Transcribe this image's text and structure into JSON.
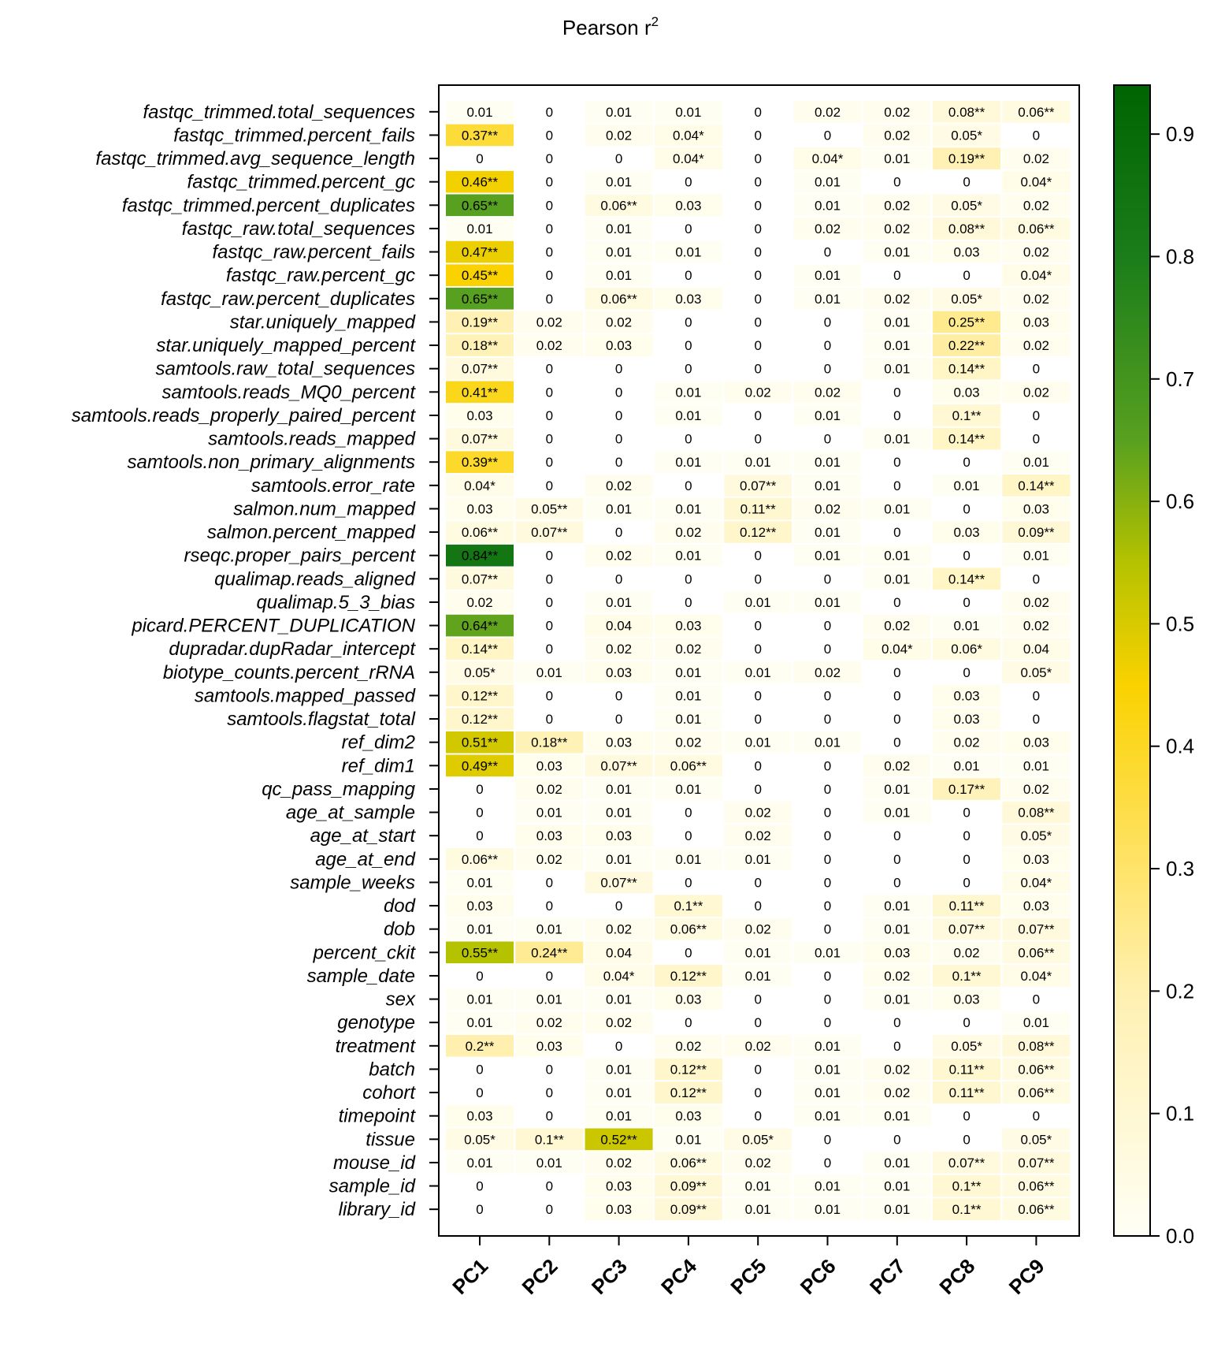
{
  "chart_data": {
    "type": "heatmap",
    "title": "Pearson r",
    "title_superscript": "2",
    "columns": [
      "PC1",
      "PC2",
      "PC3",
      "PC4",
      "PC5",
      "PC6",
      "PC7",
      "PC8",
      "PC9"
    ],
    "rows": [
      {
        "name": "fastqc_trimmed.total_sequences",
        "values": [
          "0.01",
          "0",
          "0.01",
          "0.01",
          "0",
          "0.02",
          "0.02",
          "0.08**",
          "0.06**"
        ]
      },
      {
        "name": "fastqc_trimmed.percent_fails",
        "values": [
          "0.37**",
          "0",
          "0.02",
          "0.04*",
          "0",
          "0",
          "0.02",
          "0.05*",
          "0"
        ]
      },
      {
        "name": "fastqc_trimmed.avg_sequence_length",
        "values": [
          "0",
          "0",
          "0",
          "0.04*",
          "0",
          "0.04*",
          "0.01",
          "0.19**",
          "0.02"
        ]
      },
      {
        "name": "fastqc_trimmed.percent_gc",
        "values": [
          "0.46**",
          "0",
          "0.01",
          "0",
          "0",
          "0.01",
          "0",
          "0",
          "0.04*"
        ]
      },
      {
        "name": "fastqc_trimmed.percent_duplicates",
        "values": [
          "0.65**",
          "0",
          "0.06**",
          "0.03",
          "0",
          "0.01",
          "0.02",
          "0.05*",
          "0.02"
        ]
      },
      {
        "name": "fastqc_raw.total_sequences",
        "values": [
          "0.01",
          "0",
          "0.01",
          "0",
          "0",
          "0.02",
          "0.02",
          "0.08**",
          "0.06**"
        ]
      },
      {
        "name": "fastqc_raw.percent_fails",
        "values": [
          "0.47**",
          "0",
          "0.01",
          "0.01",
          "0",
          "0",
          "0.01",
          "0.03",
          "0.02"
        ]
      },
      {
        "name": "fastqc_raw.percent_gc",
        "values": [
          "0.45**",
          "0",
          "0.01",
          "0",
          "0",
          "0.01",
          "0",
          "0",
          "0.04*"
        ]
      },
      {
        "name": "fastqc_raw.percent_duplicates",
        "values": [
          "0.65**",
          "0",
          "0.06**",
          "0.03",
          "0",
          "0.01",
          "0.02",
          "0.05*",
          "0.02"
        ]
      },
      {
        "name": "star.uniquely_mapped",
        "values": [
          "0.19**",
          "0.02",
          "0.02",
          "0",
          "0",
          "0",
          "0.01",
          "0.25**",
          "0.03"
        ]
      },
      {
        "name": "star.uniquely_mapped_percent",
        "values": [
          "0.18**",
          "0.02",
          "0.03",
          "0",
          "0",
          "0",
          "0.01",
          "0.22**",
          "0.02"
        ]
      },
      {
        "name": "samtools.raw_total_sequences",
        "values": [
          "0.07**",
          "0",
          "0",
          "0",
          "0",
          "0",
          "0.01",
          "0.14**",
          "0"
        ]
      },
      {
        "name": "samtools.reads_MQ0_percent",
        "values": [
          "0.41**",
          "0",
          "0",
          "0.01",
          "0.02",
          "0.02",
          "0",
          "0.03",
          "0.02"
        ]
      },
      {
        "name": "samtools.reads_properly_paired_percent",
        "values": [
          "0.03",
          "0",
          "0",
          "0.01",
          "0",
          "0.01",
          "0",
          "0.1**",
          "0"
        ]
      },
      {
        "name": "samtools.reads_mapped",
        "values": [
          "0.07**",
          "0",
          "0",
          "0",
          "0",
          "0",
          "0.01",
          "0.14**",
          "0"
        ]
      },
      {
        "name": "samtools.non_primary_alignments",
        "values": [
          "0.39**",
          "0",
          "0",
          "0.01",
          "0.01",
          "0.01",
          "0",
          "0",
          "0.01"
        ]
      },
      {
        "name": "samtools.error_rate",
        "values": [
          "0.04*",
          "0",
          "0.02",
          "0",
          "0.07**",
          "0.01",
          "0",
          "0.01",
          "0.14**"
        ]
      },
      {
        "name": "salmon.num_mapped",
        "values": [
          "0.03",
          "0.05**",
          "0.01",
          "0.01",
          "0.11**",
          "0.02",
          "0.01",
          "0",
          "0.03"
        ]
      },
      {
        "name": "salmon.percent_mapped",
        "values": [
          "0.06**",
          "0.07**",
          "0",
          "0.02",
          "0.12**",
          "0.01",
          "0",
          "0.03",
          "0.09**"
        ]
      },
      {
        "name": "rseqc.proper_pairs_percent",
        "values": [
          "0.84**",
          "0",
          "0.02",
          "0.01",
          "0",
          "0.01",
          "0.01",
          "0",
          "0.01"
        ]
      },
      {
        "name": "qualimap.reads_aligned",
        "values": [
          "0.07**",
          "0",
          "0",
          "0",
          "0",
          "0",
          "0.01",
          "0.14**",
          "0"
        ]
      },
      {
        "name": "qualimap.5_3_bias",
        "values": [
          "0.02",
          "0",
          "0.01",
          "0",
          "0.01",
          "0.01",
          "0",
          "0",
          "0.02"
        ]
      },
      {
        "name": "picard.PERCENT_DUPLICATION",
        "values": [
          "0.64**",
          "0",
          "0.04",
          "0.03",
          "0",
          "0",
          "0.02",
          "0.01",
          "0.02"
        ]
      },
      {
        "name": "dupradar.dupRadar_intercept",
        "values": [
          "0.14**",
          "0",
          "0.02",
          "0.02",
          "0",
          "0",
          "0.04*",
          "0.06*",
          "0.04"
        ]
      },
      {
        "name": "biotype_counts.percent_rRNA",
        "values": [
          "0.05*",
          "0.01",
          "0.03",
          "0.01",
          "0.01",
          "0.02",
          "0",
          "0",
          "0.05*"
        ]
      },
      {
        "name": "samtools.mapped_passed",
        "values": [
          "0.12**",
          "0",
          "0",
          "0.01",
          "0",
          "0",
          "0",
          "0.03",
          "0"
        ]
      },
      {
        "name": "samtools.flagstat_total",
        "values": [
          "0.12**",
          "0",
          "0",
          "0.01",
          "0",
          "0",
          "0",
          "0.03",
          "0"
        ]
      },
      {
        "name": "ref_dim2",
        "values": [
          "0.51**",
          "0.18**",
          "0.03",
          "0.02",
          "0.01",
          "0.01",
          "0",
          "0.02",
          "0.03"
        ]
      },
      {
        "name": "ref_dim1",
        "values": [
          "0.49**",
          "0.03",
          "0.07**",
          "0.06**",
          "0",
          "0",
          "0.02",
          "0.01",
          "0.01"
        ]
      },
      {
        "name": "qc_pass_mapping",
        "values": [
          "0",
          "0.02",
          "0.01",
          "0.01",
          "0",
          "0",
          "0.01",
          "0.17**",
          "0.02"
        ]
      },
      {
        "name": "age_at_sample",
        "values": [
          "0",
          "0.01",
          "0.01",
          "0",
          "0.02",
          "0",
          "0.01",
          "0",
          "0.08**"
        ]
      },
      {
        "name": "age_at_start",
        "values": [
          "0",
          "0.03",
          "0.03",
          "0",
          "0.02",
          "0",
          "0",
          "0",
          "0.05*"
        ]
      },
      {
        "name": "age_at_end",
        "values": [
          "0.06**",
          "0.02",
          "0.01",
          "0.01",
          "0.01",
          "0",
          "0",
          "0",
          "0.03"
        ]
      },
      {
        "name": "sample_weeks",
        "values": [
          "0.01",
          "0",
          "0.07**",
          "0",
          "0",
          "0",
          "0",
          "0",
          "0.04*"
        ]
      },
      {
        "name": "dod",
        "values": [
          "0.03",
          "0",
          "0",
          "0.1**",
          "0",
          "0",
          "0.01",
          "0.11**",
          "0.03"
        ]
      },
      {
        "name": "dob",
        "values": [
          "0.01",
          "0.01",
          "0.02",
          "0.06**",
          "0.02",
          "0",
          "0.01",
          "0.07**",
          "0.07**"
        ]
      },
      {
        "name": "percent_ckit",
        "values": [
          "0.55**",
          "0.24**",
          "0.04",
          "0",
          "0.01",
          "0.01",
          "0.03",
          "0.02",
          "0.06**"
        ]
      },
      {
        "name": "sample_date",
        "values": [
          "0",
          "0",
          "0.04*",
          "0.12**",
          "0.01",
          "0",
          "0.02",
          "0.1**",
          "0.04*"
        ]
      },
      {
        "name": "sex",
        "values": [
          "0.01",
          "0.01",
          "0.01",
          "0.03",
          "0",
          "0",
          "0.01",
          "0.03",
          "0"
        ]
      },
      {
        "name": "genotype",
        "values": [
          "0.01",
          "0.02",
          "0.02",
          "0",
          "0",
          "0",
          "0",
          "0",
          "0.01"
        ]
      },
      {
        "name": "treatment",
        "values": [
          "0.2**",
          "0.03",
          "0",
          "0.02",
          "0.02",
          "0.01",
          "0",
          "0.05*",
          "0.08**"
        ]
      },
      {
        "name": "batch",
        "values": [
          "0",
          "0",
          "0.01",
          "0.12**",
          "0",
          "0.01",
          "0.02",
          "0.11**",
          "0.06**"
        ]
      },
      {
        "name": "cohort",
        "values": [
          "0",
          "0",
          "0.01",
          "0.12**",
          "0",
          "0.01",
          "0.02",
          "0.11**",
          "0.06**"
        ]
      },
      {
        "name": "timepoint",
        "values": [
          "0.03",
          "0",
          "0.01",
          "0.03",
          "0",
          "0.01",
          "0.01",
          "0",
          "0"
        ]
      },
      {
        "name": "tissue",
        "values": [
          "0.05*",
          "0.1**",
          "0.52**",
          "0.01",
          "0.05*",
          "0",
          "0",
          "0",
          "0.05*"
        ]
      },
      {
        "name": "mouse_id",
        "values": [
          "0.01",
          "0.01",
          "0.02",
          "0.06**",
          "0.02",
          "0",
          "0.01",
          "0.07**",
          "0.07**"
        ]
      },
      {
        "name": "sample_id",
        "values": [
          "0",
          "0",
          "0.03",
          "0.09**",
          "0.01",
          "0.01",
          "0.01",
          "0.1**",
          "0.06**"
        ]
      },
      {
        "name": "library_id",
        "values": [
          "0",
          "0",
          "0.03",
          "0.09**",
          "0.01",
          "0.01",
          "0.01",
          "0.1**",
          "0.06**"
        ]
      }
    ],
    "colorbar": {
      "range": [
        0,
        0.94
      ],
      "ticks": [
        "0.0",
        "0.1",
        "0.2",
        "0.3",
        "0.4",
        "0.5",
        "0.6",
        "0.7",
        "0.8",
        "0.9"
      ],
      "stops": [
        {
          "value": 0.0,
          "color": "#fffff5"
        },
        {
          "value": 0.2,
          "color": "#fff0b0"
        },
        {
          "value": 0.3,
          "color": "#ffe36a"
        },
        {
          "value": 0.45,
          "color": "#fad200"
        },
        {
          "value": 0.55,
          "color": "#b5c200"
        },
        {
          "value": 0.65,
          "color": "#58a020"
        },
        {
          "value": 0.8,
          "color": "#1a7d1a"
        },
        {
          "value": 0.94,
          "color": "#006400"
        }
      ]
    }
  }
}
